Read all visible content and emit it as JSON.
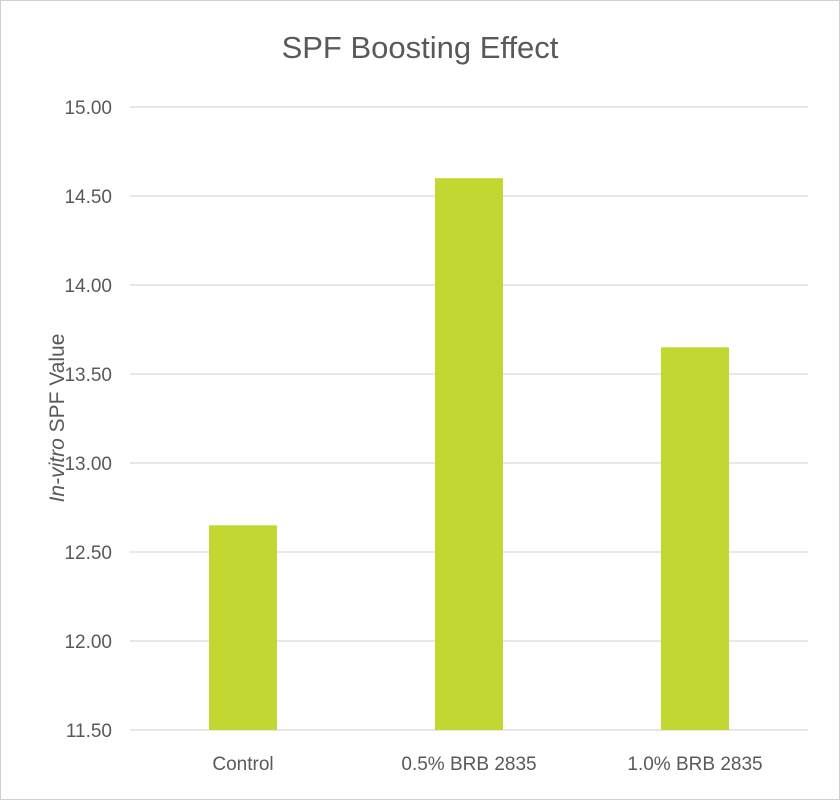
{
  "chart_data": {
    "type": "bar",
    "title": "SPF Boosting Effect",
    "ylabel_italic": "In-vitro",
    "ylabel_rest": " SPF Value",
    "xlabel": "",
    "categories": [
      "Control",
      "0.5% BRB 2835",
      "1.0% BRB 2835"
    ],
    "values": [
      12.65,
      14.6,
      13.65
    ],
    "ylim": [
      11.5,
      15.0
    ],
    "yticks": [
      "15.00",
      "14.50",
      "14.00",
      "13.50",
      "13.00",
      "12.50",
      "12.00",
      "11.50"
    ],
    "grid": true,
    "bar_color": "#c2d732"
  }
}
